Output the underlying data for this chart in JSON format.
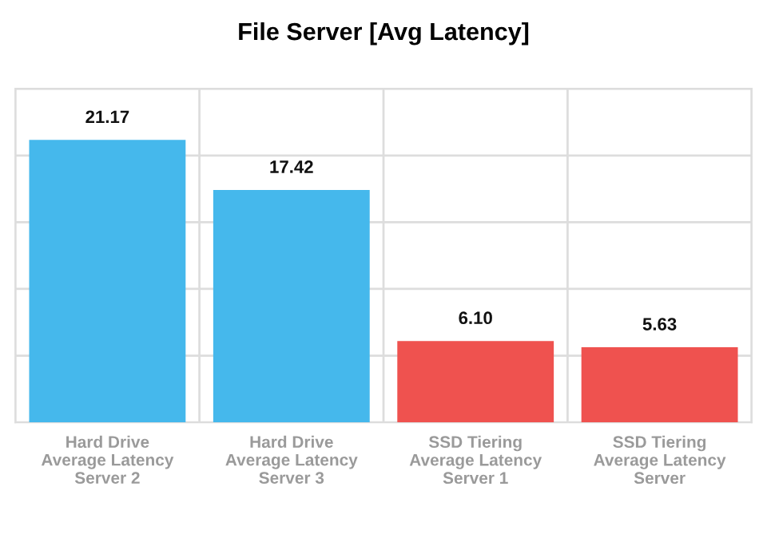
{
  "chart_data": {
    "type": "bar",
    "title": "File Server [Avg Latency]",
    "categories": [
      "Hard Drive\nAverage Latency\nServer 2",
      "Hard Drive\nAverage Latency\nServer 3",
      "SSD Tiering\nAverage Latency\nServer 1",
      "SSD Tiering\nAverage Latency\nServer"
    ],
    "values": [
      21.17,
      17.42,
      6.1,
      5.63
    ],
    "value_labels": [
      "21.17",
      "17.42",
      "6.10",
      "5.63"
    ],
    "colors": [
      "#45b8ec",
      "#45b8ec",
      "#ef524f",
      "#ef524f"
    ],
    "ylim": [
      0,
      25
    ],
    "yticks": [
      {
        "value": 0,
        "label": null
      },
      {
        "value": 5,
        "label": null
      },
      {
        "value": 10,
        "label": null
      },
      {
        "value": 15,
        "label": null
      },
      {
        "value": 20,
        "label": null
      },
      {
        "value": 25,
        "label": null
      }
    ],
    "grid": true
  }
}
